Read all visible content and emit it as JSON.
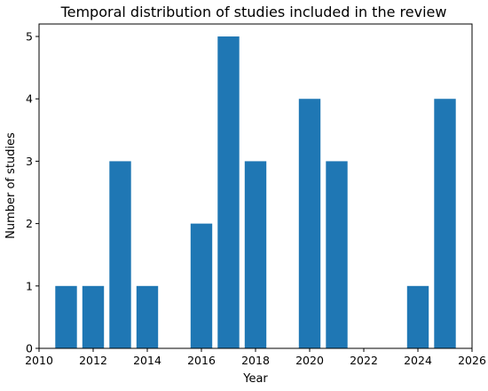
{
  "chart_data": {
    "type": "bar",
    "title": "Temporal distribution of studies included in the review",
    "xlabel": "Year",
    "ylabel": "Number of studies",
    "x": [
      2011,
      2012,
      2013,
      2014,
      2016,
      2017,
      2018,
      2020,
      2021,
      2024,
      2025
    ],
    "values": [
      1,
      1,
      3,
      1,
      2,
      5,
      3,
      4,
      3,
      1,
      4
    ],
    "xlim": [
      2010,
      2026
    ],
    "ylim": [
      0,
      5.2
    ],
    "xticks": [
      "2010",
      "2012",
      "2014",
      "2016",
      "2018",
      "2020",
      "2022",
      "2024",
      "2026"
    ],
    "yticks": [
      "0",
      "1",
      "2",
      "3",
      "4",
      "5"
    ],
    "bar_width_years": 0.8,
    "bar_color": "#1f77b4",
    "grid": false,
    "legend": "none"
  }
}
